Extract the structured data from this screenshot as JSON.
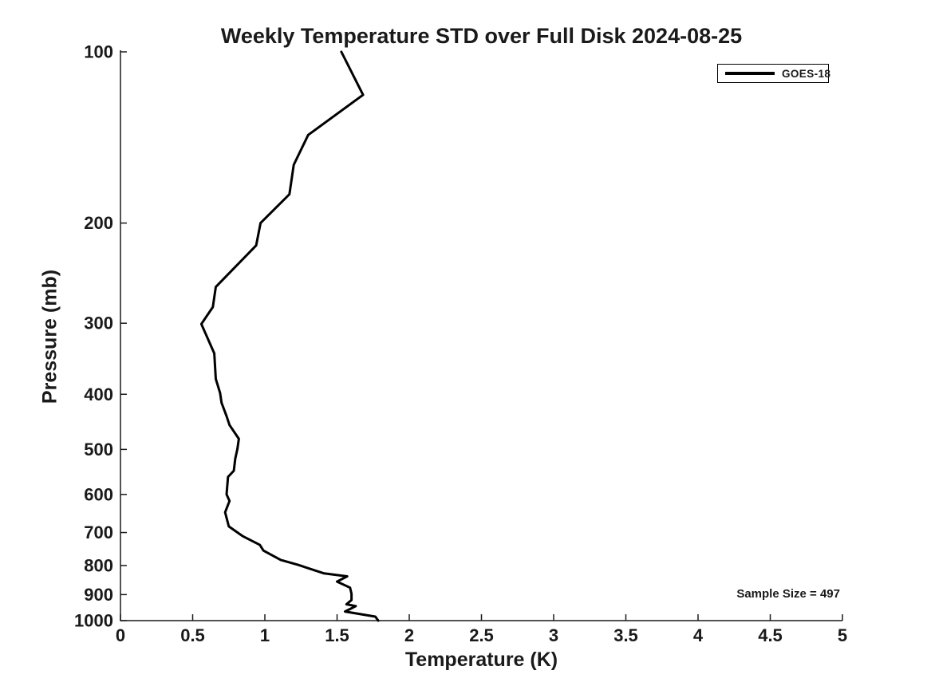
{
  "title": "Weekly Temperature STD over Full Disk 2024-08-25",
  "legend": {
    "series_label": "GOES-18"
  },
  "annotation": {
    "sample_size_text": "Sample Size = 497"
  },
  "axis": {
    "x_label": "Temperature (K)",
    "y_label": "Pressure (mb)"
  },
  "colors": {
    "line": "#000000",
    "axis": "#1a1a1a",
    "background": "#ffffff"
  },
  "chart_data": {
    "type": "line",
    "title": "Weekly Temperature STD over Full Disk 2024-08-25",
    "xlabel": "Temperature (K)",
    "ylabel": "Pressure (mb)",
    "xlim": [
      0,
      5
    ],
    "ylim": [
      100,
      1000
    ],
    "y_scale": "log",
    "y_inverted": true,
    "grid": false,
    "legend_position": "top-right",
    "x_ticks": [
      0,
      0.5,
      1,
      1.5,
      2,
      2.5,
      3,
      3.5,
      4,
      4.5,
      5
    ],
    "y_ticks": [
      100,
      200,
      300,
      400,
      500,
      600,
      700,
      800,
      900,
      1000
    ],
    "series": [
      {
        "name": "GOES-18",
        "color": "#000000",
        "x_temperature_K": [
          1.53,
          1.68,
          1.3,
          1.2,
          1.17,
          0.97,
          0.94,
          0.66,
          0.64,
          0.56,
          0.65,
          0.66,
          0.69,
          0.7,
          0.735,
          0.755,
          0.82,
          0.81,
          0.795,
          0.785,
          0.745,
          0.735,
          0.755,
          0.725,
          0.75,
          0.845,
          0.965,
          0.99,
          1.11,
          1.23,
          1.41,
          1.57,
          1.5,
          1.59,
          1.6,
          1.6,
          1.565,
          1.63,
          1.555,
          1.765,
          1.785
        ],
        "y_pressure_mb": [
          100,
          119,
          140,
          158,
          178,
          200,
          219,
          259,
          281,
          301,
          339,
          376,
          398,
          414,
          437,
          453,
          479,
          499,
          519,
          545,
          559,
          600,
          616,
          645,
          683,
          710,
          736,
          753,
          782,
          798,
          826,
          836,
          854,
          875,
          897,
          920,
          936,
          943,
          964,
          984,
          1000
        ]
      }
    ],
    "annotations": [
      {
        "text": "Sample Size = 497",
        "position": "bottom-right"
      }
    ]
  }
}
